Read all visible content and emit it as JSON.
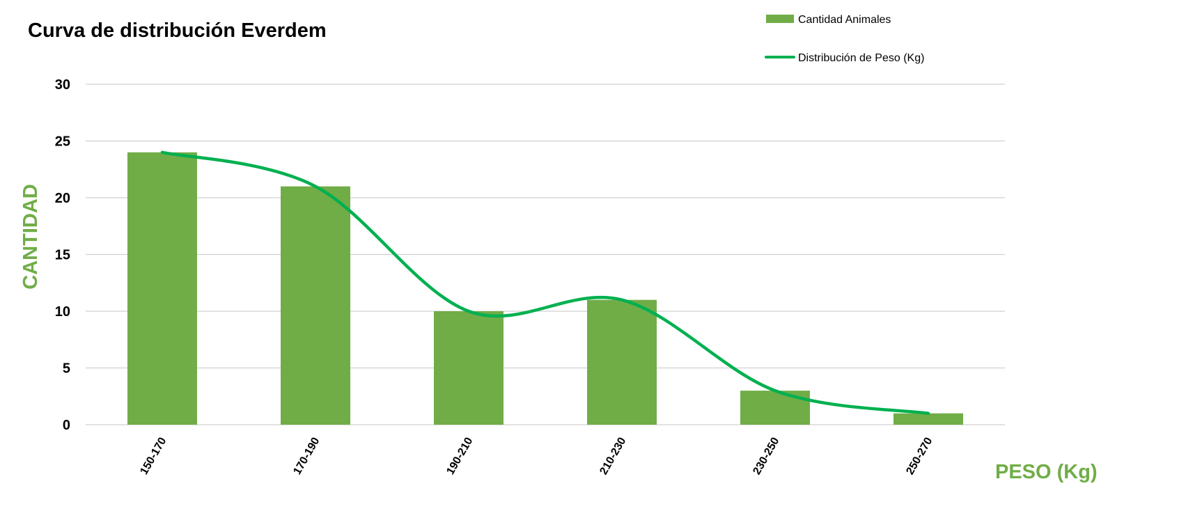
{
  "chart_data": {
    "type": "bar",
    "title": "Curva de distribución Everdem",
    "xlabel": "PESO (Kg)",
    "ylabel": "CANTIDAD",
    "categories": [
      "150-170",
      "170-190",
      "190-210",
      "210-230",
      "230-250",
      "250-270"
    ],
    "series": [
      {
        "name": "Cantidad Animales",
        "kind": "bar",
        "color": "#70ad47",
        "values": [
          24,
          21,
          10,
          11,
          3,
          1
        ]
      },
      {
        "name": "Distribución de Peso (Kg)",
        "kind": "smooth-line",
        "color": "#00b050",
        "values": [
          24,
          21,
          10,
          11,
          3,
          1
        ]
      }
    ],
    "ylim": [
      0,
      30
    ],
    "yticks": [
      0,
      5,
      10,
      15,
      20,
      25,
      30
    ],
    "grid": true,
    "legend_position": "top-right",
    "axis_label_color": "#70ad47"
  }
}
